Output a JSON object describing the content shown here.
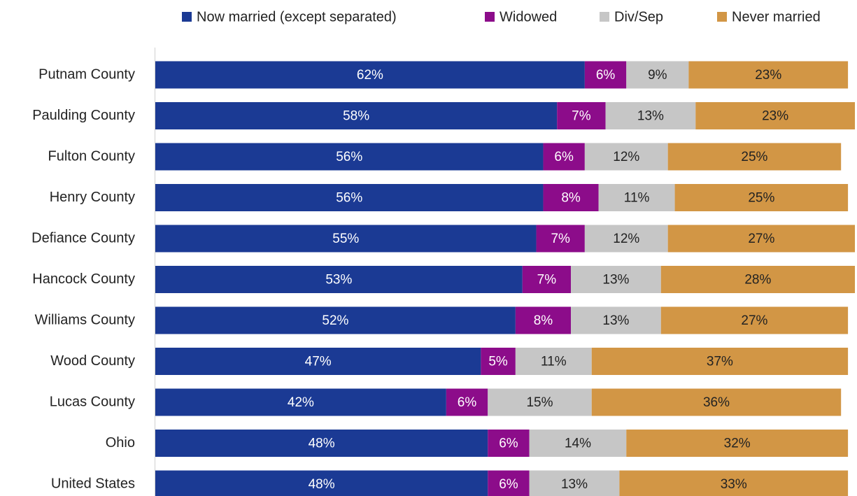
{
  "chart_data": {
    "type": "stacked-bar-horizontal",
    "categories": [
      "Putnam County",
      "Paulding County",
      "Fulton County",
      "Henry County",
      "Defiance County",
      "Hancock County",
      "Williams County",
      "Wood County",
      "Lucas County",
      "Ohio",
      "United States"
    ],
    "legend": "top",
    "series": [
      {
        "name": "Now married (except separated)",
        "color": "#1b3a94",
        "label_color": "#ffffff",
        "values": [
          62,
          58,
          56,
          56,
          55,
          53,
          52,
          47,
          42,
          48,
          48
        ],
        "value_labels": [
          "62%",
          "58%",
          "56%",
          "56%",
          "55%",
          "53%",
          "52%",
          "47%",
          "42%",
          "48%",
          "48%"
        ]
      },
      {
        "name": "Widowed",
        "color": "#8c0c8a",
        "label_color": "#ffffff",
        "values": [
          6,
          7,
          6,
          8,
          7,
          7,
          8,
          5,
          6,
          6,
          6
        ],
        "value_labels": [
          "6%",
          "7%",
          "6%",
          "8%",
          "7%",
          "7%",
          "8%",
          "5%",
          "6%",
          "6%",
          "6%"
        ]
      },
      {
        "name": "Div/Sep",
        "color": "#c6c6c6",
        "label_color": "#222222",
        "values": [
          9,
          13,
          12,
          11,
          12,
          13,
          13,
          11,
          15,
          14,
          13
        ],
        "value_labels": [
          "9%",
          "13%",
          "12%",
          "11%",
          "12%",
          "13%",
          "13%",
          "11%",
          "15%",
          "14%",
          "13%"
        ]
      },
      {
        "name": "Never married",
        "color": "#d29645",
        "label_color": "#222222",
        "values": [
          23,
          23,
          25,
          25,
          27,
          28,
          27,
          37,
          36,
          32,
          33
        ],
        "value_labels": [
          "23%",
          "23%",
          "25%",
          "25%",
          "27%",
          "28%",
          "27%",
          "37%",
          "36%",
          "32%",
          "33%"
        ]
      }
    ]
  }
}
